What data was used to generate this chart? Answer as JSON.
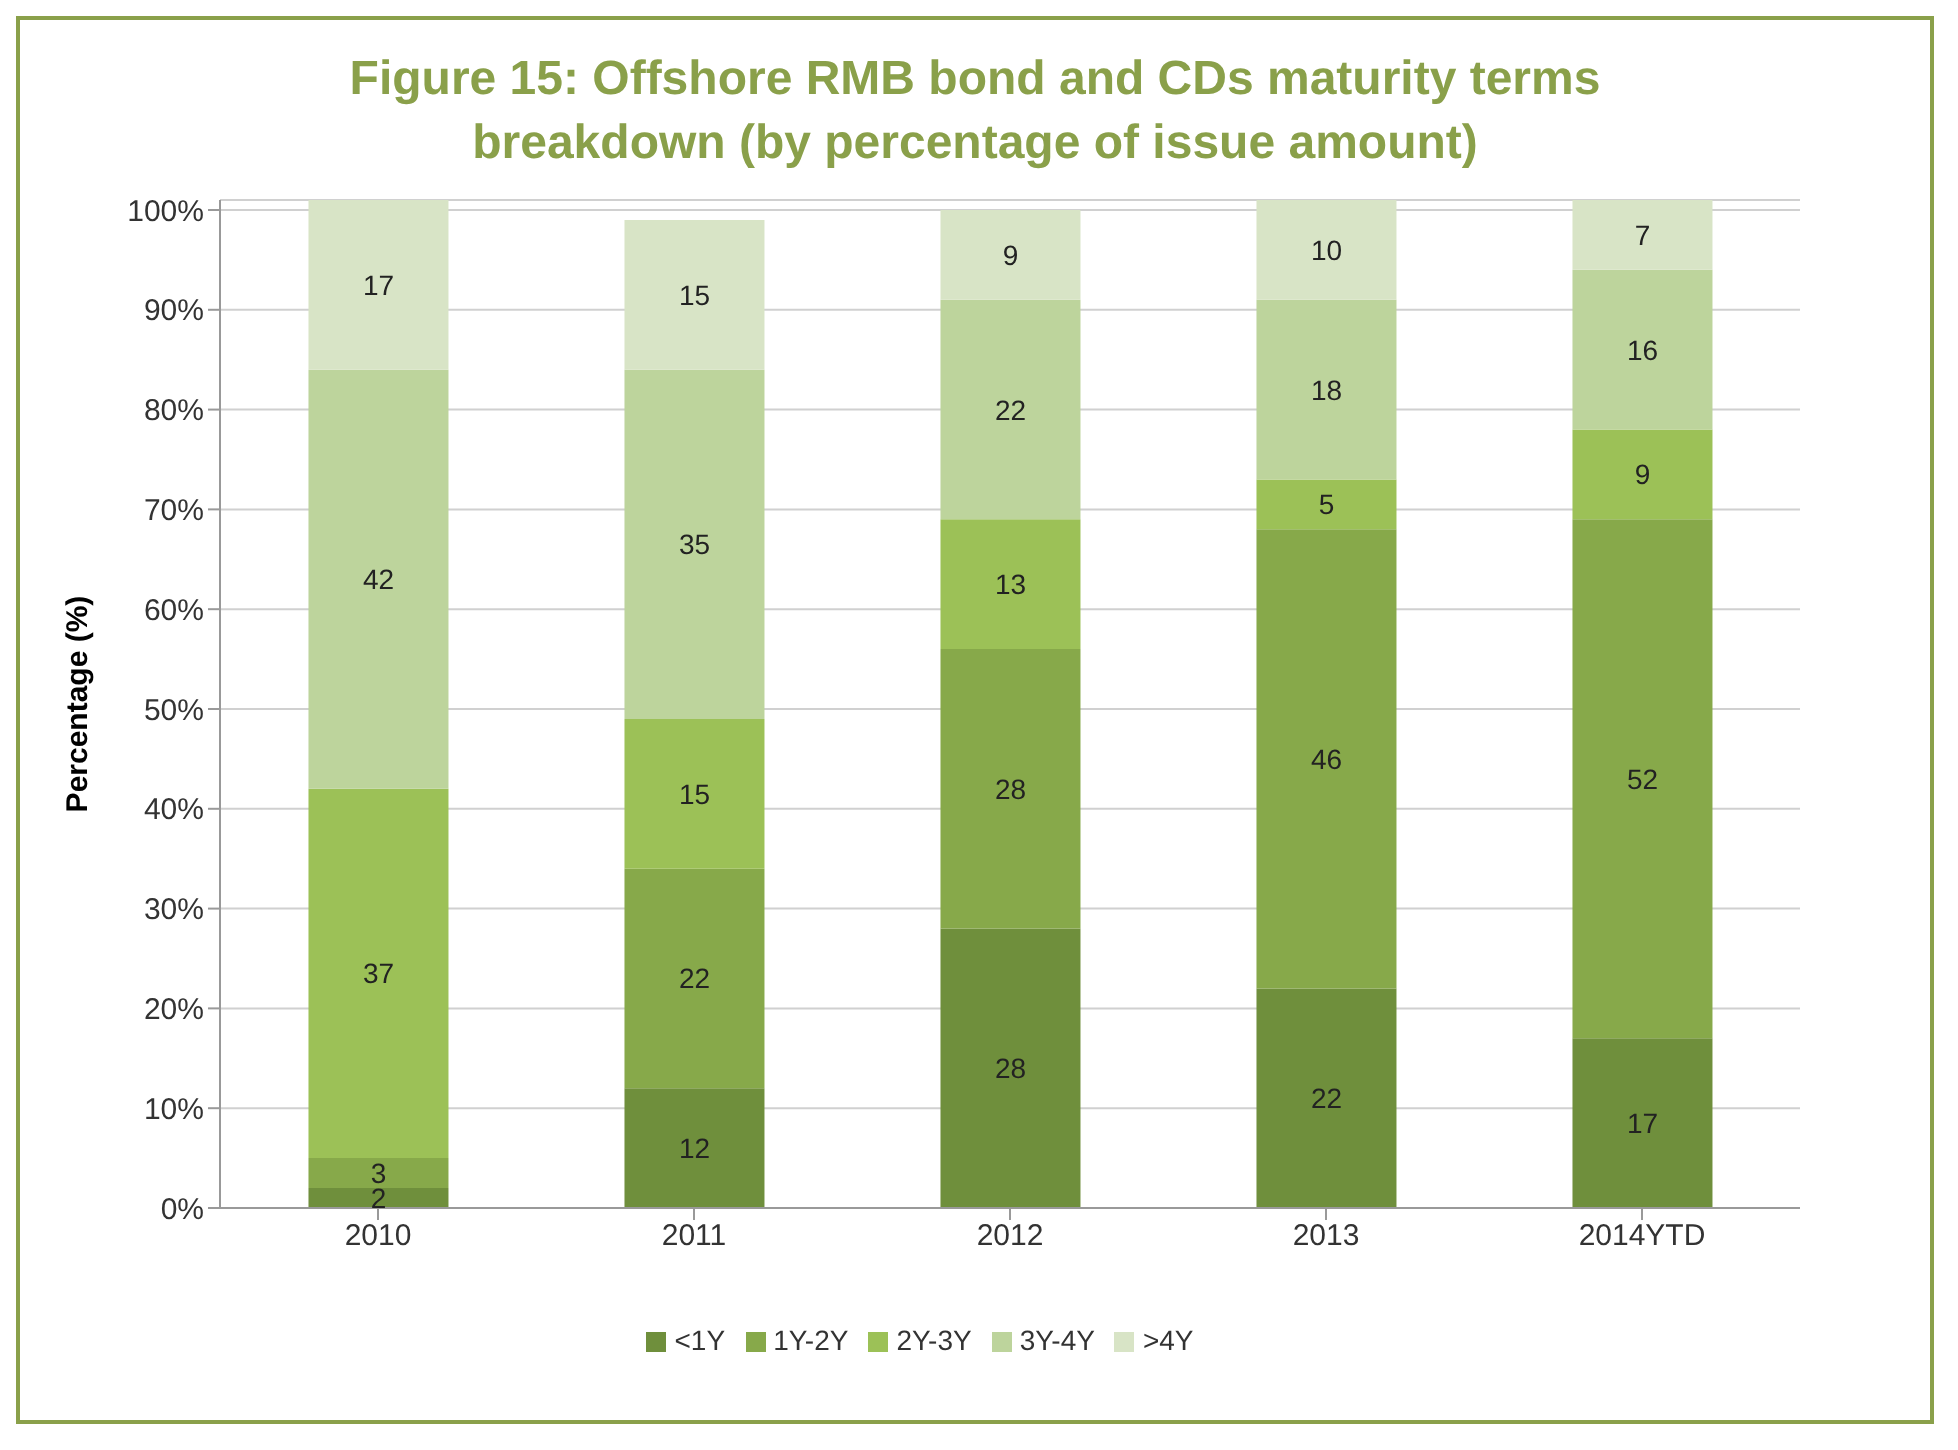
{
  "chart_data": {
    "type": "bar",
    "title": "Figure 15: Offshore RMB bond and CDs maturity terms breakdown (by percentage of issue amount)",
    "ylabel": "Percentage (%)",
    "categories": [
      "2010",
      "2011",
      "2012",
      "2013",
      "2014YTD"
    ],
    "stacked": true,
    "data_labels": true,
    "grid": "y",
    "legend": "bottom",
    "series": [
      {
        "name": "<1Y",
        "color": "#6f8f3c",
        "values": [
          2,
          12,
          28,
          22,
          17
        ]
      },
      {
        "name": "1Y-2Y",
        "color": "#87a94a",
        "values": [
          3,
          22,
          28,
          46,
          52
        ]
      },
      {
        "name": "2Y-3Y",
        "color": "#9cc157",
        "values": [
          37,
          15,
          13,
          5,
          9
        ]
      },
      {
        "name": "3Y-4Y",
        "color": "#bdd49c",
        "values": [
          42,
          35,
          22,
          18,
          16
        ]
      },
      {
        "name": ">4Y",
        "color": "#d8e4c6",
        "values": [
          17,
          15,
          9,
          10,
          7
        ]
      }
    ],
    "ylim": [
      0,
      101
    ],
    "yticks": [
      {
        "value": 0,
        "label": "0%"
      },
      {
        "value": 10,
        "label": "10%"
      },
      {
        "value": 20,
        "label": "20%"
      },
      {
        "value": 30,
        "label": "30%"
      },
      {
        "value": 40,
        "label": "40%"
      },
      {
        "value": 50,
        "label": "50%"
      },
      {
        "value": 60,
        "label": "60%"
      },
      {
        "value": 70,
        "label": "70%"
      },
      {
        "value": 80,
        "label": "80%"
      },
      {
        "value": 90,
        "label": "90%"
      },
      {
        "value": 100,
        "label": "100%"
      }
    ]
  }
}
